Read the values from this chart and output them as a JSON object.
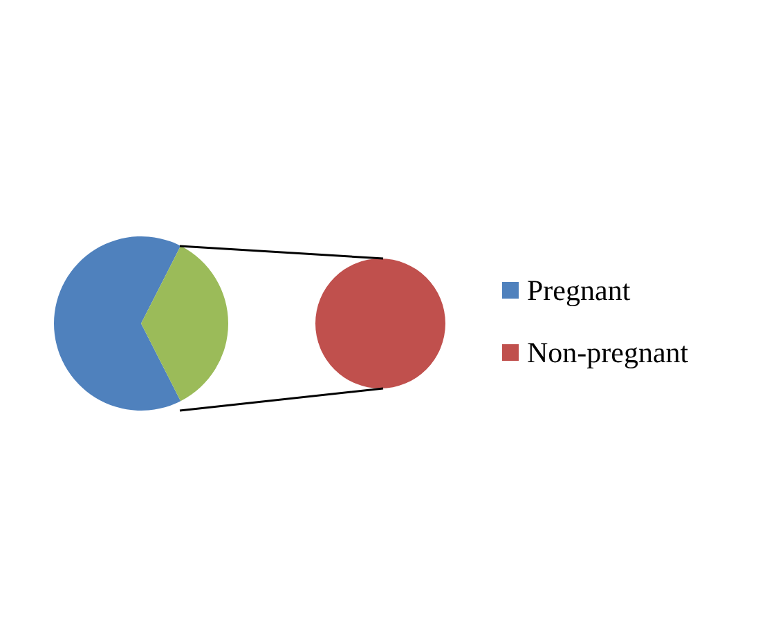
{
  "chart_data": [
    {
      "type": "pie",
      "categories": [
        "Pregnant",
        null
      ],
      "values": [
        65,
        35
      ],
      "colors": [
        "#4f81bd",
        "#9bbb59"
      ],
      "legend": "right"
    },
    {
      "type": "pie",
      "categories": [
        "Non-pregnant"
      ],
      "values": [
        100
      ],
      "colors": [
        "#c0504d"
      ],
      "legend": "right"
    }
  ]
}
